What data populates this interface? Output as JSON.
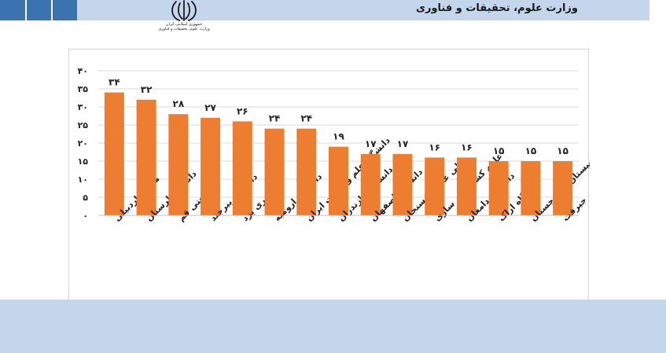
{
  "header": {
    "ministry_title": "وزارت علوم، تحقیقات و فناوری",
    "emblem_icon": "iran-emblem-icon",
    "emblem_caption_line1": "جمهوری اسلامی ایران",
    "emblem_caption_line2": "وزارت علوم، تحقیقات و فناوری"
  },
  "colors": {
    "banner": "#c3d6ec",
    "banner_accent": "#3a73b0",
    "bar": "#ed7d31",
    "gridline": "#d9d9d9"
  },
  "chart_data": {
    "type": "bar",
    "categories": [
      "محقق اردبیلی",
      "دانشگاه لرستان",
      "صنعتی قم",
      "دانشگاه بیرجند",
      "سراسری یزد",
      "دانشگاه ارومیه",
      "دانشگاه علم و صنعت ایران",
      "دانشگاه مازندران",
      "دانشگاه اصفهان",
      "ولی عصر رفسنجان",
      "علوم کشاورزی ساری",
      "دانشگاه دامغان",
      "دانشگاه اراک",
      "سیستان و بلوچستان",
      "جیرفت"
    ],
    "values": [
      34,
      32,
      28,
      27,
      26,
      24,
      24,
      19,
      17,
      17,
      16,
      16,
      15,
      15,
      15
    ],
    "data_labels": [
      "۳۴",
      "۳۲",
      "۲۸",
      "۲۷",
      "۲۶",
      "۲۴",
      "۲۴",
      "۱۹",
      "۱۷",
      "۱۷",
      "۱۶",
      "۱۶",
      "۱۵",
      "۱۵",
      "۱۵"
    ],
    "y_ticks": [
      0,
      5,
      10,
      15,
      20,
      25,
      30,
      35,
      40
    ],
    "y_tick_labels": [
      "۰",
      "۵",
      "۱۰",
      "۱۵",
      "۲۰",
      "۲۵",
      "۳۰",
      "۳۵",
      "۴۰"
    ],
    "ylim": [
      0,
      40
    ],
    "grid": true,
    "legend": "none"
  }
}
